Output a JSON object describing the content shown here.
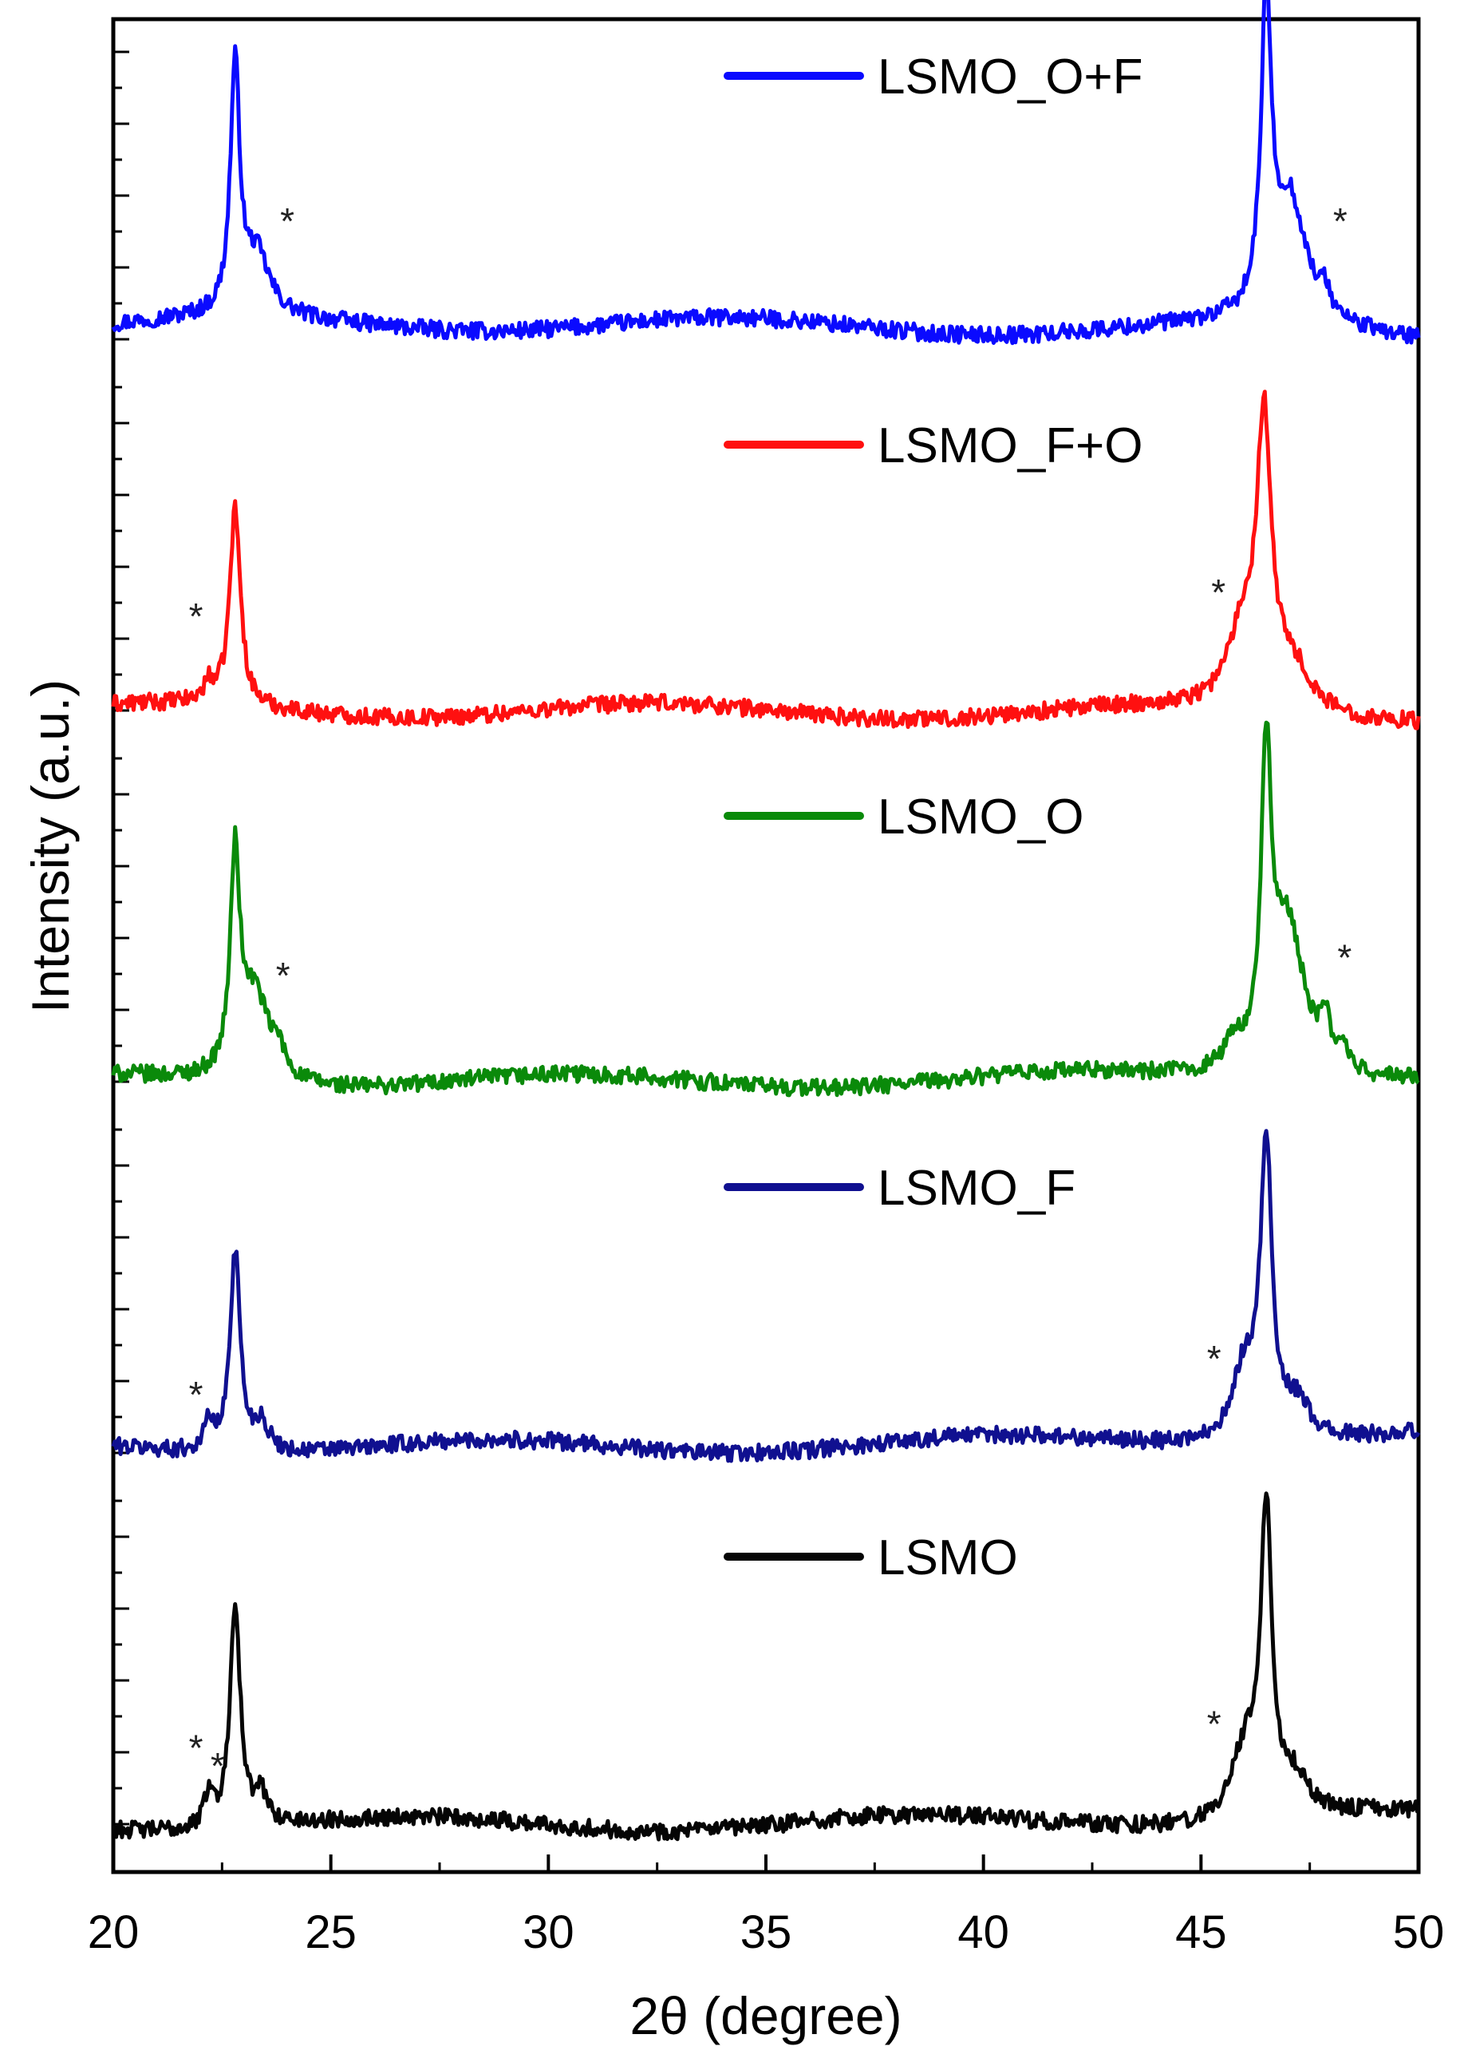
{
  "chart_data": {
    "type": "line",
    "title": "",
    "xlabel": "2θ (degree)",
    "ylabel": "Intensity (a.u.)",
    "xlim": [
      20,
      50
    ],
    "x_ticks": [
      "20",
      "25",
      "30",
      "35",
      "40",
      "45",
      "50"
    ],
    "y_ticks_labeled": false,
    "grid": false,
    "legend_placement": "beside each curve",
    "series": [
      {
        "name": "LSMO_O+F",
        "color": "#0a0aff",
        "offset": 4,
        "baseline": 0.25,
        "peaks": [
          {
            "x": 22.8,
            "height": 4.1,
            "width": 0.13
          },
          {
            "x": 23.3,
            "height": 1.0,
            "width": 0.35
          },
          {
            "x": 46.5,
            "height": 5.1,
            "width": 0.14
          },
          {
            "x": 47.05,
            "height": 2.05,
            "width": 0.45
          },
          {
            "x": 47.85,
            "height": 0.35,
            "width": 0.15
          }
        ],
        "markers": [
          {
            "x": 24.0,
            "y": 2.0,
            "label": "*"
          },
          {
            "x": 48.2,
            "y": 2.0,
            "label": "*"
          }
        ]
      },
      {
        "name": "LSMO_F+O",
        "color": "#ff1010",
        "offset": 3,
        "baseline": 0.0,
        "peaks": [
          {
            "x": 22.8,
            "height": 3.3,
            "width": 0.15
          },
          {
            "x": 22.2,
            "height": 0.3,
            "width": 0.15
          },
          {
            "x": 46.45,
            "height": 4.6,
            "width": 0.2
          },
          {
            "x": 45.95,
            "height": 1.2,
            "width": 0.4
          },
          {
            "x": 47.1,
            "height": 0.7,
            "width": 0.5
          }
        ],
        "markers": [
          {
            "x": 21.9,
            "y": 1.6,
            "label": "*"
          },
          {
            "x": 45.4,
            "y": 2.0,
            "label": "*"
          }
        ]
      },
      {
        "name": "LSMO_O",
        "color": "#0a8a0a",
        "offset": 2,
        "baseline": 0.0,
        "peaks": [
          {
            "x": 22.8,
            "height": 3.5,
            "width": 0.13
          },
          {
            "x": 23.25,
            "height": 1.5,
            "width": 0.4
          },
          {
            "x": 23.8,
            "height": 0.35,
            "width": 0.15
          },
          {
            "x": 46.5,
            "height": 4.9,
            "width": 0.14
          },
          {
            "x": 47.0,
            "height": 2.6,
            "width": 0.45
          },
          {
            "x": 47.85,
            "height": 0.7,
            "width": 0.15
          },
          {
            "x": 48.25,
            "height": 0.4,
            "width": 0.15
          },
          {
            "x": 45.75,
            "height": 0.4,
            "width": 0.3
          }
        ],
        "markers": [
          {
            "x": 23.9,
            "y": 1.8,
            "label": "*"
          },
          {
            "x": 48.3,
            "y": 2.1,
            "label": "*"
          }
        ]
      },
      {
        "name": "LSMO_F",
        "color": "#101090",
        "offset": 1,
        "baseline": 0.1,
        "peaks": [
          {
            "x": 22.8,
            "height": 3.4,
            "width": 0.14
          },
          {
            "x": 22.2,
            "height": 0.5,
            "width": 0.12
          },
          {
            "x": 23.4,
            "height": 0.5,
            "width": 0.2
          },
          {
            "x": 46.5,
            "height": 4.8,
            "width": 0.16
          },
          {
            "x": 46.0,
            "height": 1.2,
            "width": 0.35
          },
          {
            "x": 47.2,
            "height": 0.6,
            "width": 0.35
          }
        ],
        "markers": [
          {
            "x": 21.9,
            "y": 1.0,
            "label": "*"
          },
          {
            "x": 45.3,
            "y": 1.6,
            "label": "*"
          }
        ]
      },
      {
        "name": "LSMO",
        "color": "#050505",
        "offset": 0,
        "baseline": 0.0,
        "peaks": [
          {
            "x": 22.8,
            "height": 3.8,
            "width": 0.14
          },
          {
            "x": 22.2,
            "height": 0.6,
            "width": 0.12
          },
          {
            "x": 23.4,
            "height": 0.5,
            "width": 0.2
          },
          {
            "x": 46.5,
            "height": 5.0,
            "width": 0.16
          },
          {
            "x": 46.0,
            "height": 1.1,
            "width": 0.35
          },
          {
            "x": 47.2,
            "height": 0.6,
            "width": 0.35
          }
        ],
        "markers": [
          {
            "x": 21.9,
            "y": 1.3,
            "label": "*"
          },
          {
            "x": 22.4,
            "y": 1.0,
            "label": "*"
          },
          {
            "x": 45.3,
            "y": 1.7,
            "label": "*"
          }
        ]
      }
    ]
  }
}
